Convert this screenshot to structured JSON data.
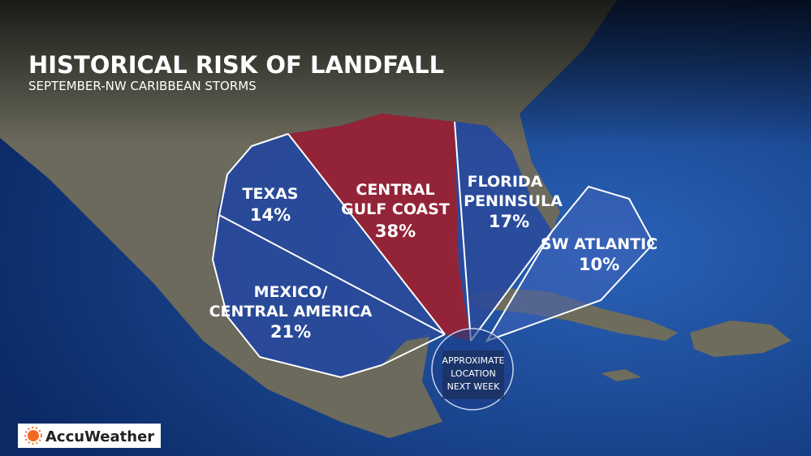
{
  "header": {
    "title": "HISTORICAL RISK OF LANDFALL",
    "subtitle": "SEPTEMBER-NW CARIBBEAN STORMS"
  },
  "regions": [
    {
      "name_lines": [
        "TEXAS"
      ],
      "risk": "14%"
    },
    {
      "name_lines": [
        "CENTRAL",
        "GULF COAST"
      ],
      "risk": "38%"
    },
    {
      "name_lines": [
        "FLORIDA",
        "PENINSULA"
      ],
      "risk": "17%"
    },
    {
      "name_lines": [
        "SW ATLANTIC"
      ],
      "risk": "10%"
    },
    {
      "name_lines": [
        "MEXICO/",
        "CENTRAL AMERICA"
      ],
      "risk": "21%"
    }
  ],
  "origin": {
    "label_lines": [
      "APPROXIMATE",
      "LOCATION",
      "NEXT WEEK"
    ]
  },
  "logo": {
    "text": "AccuWeather"
  }
}
